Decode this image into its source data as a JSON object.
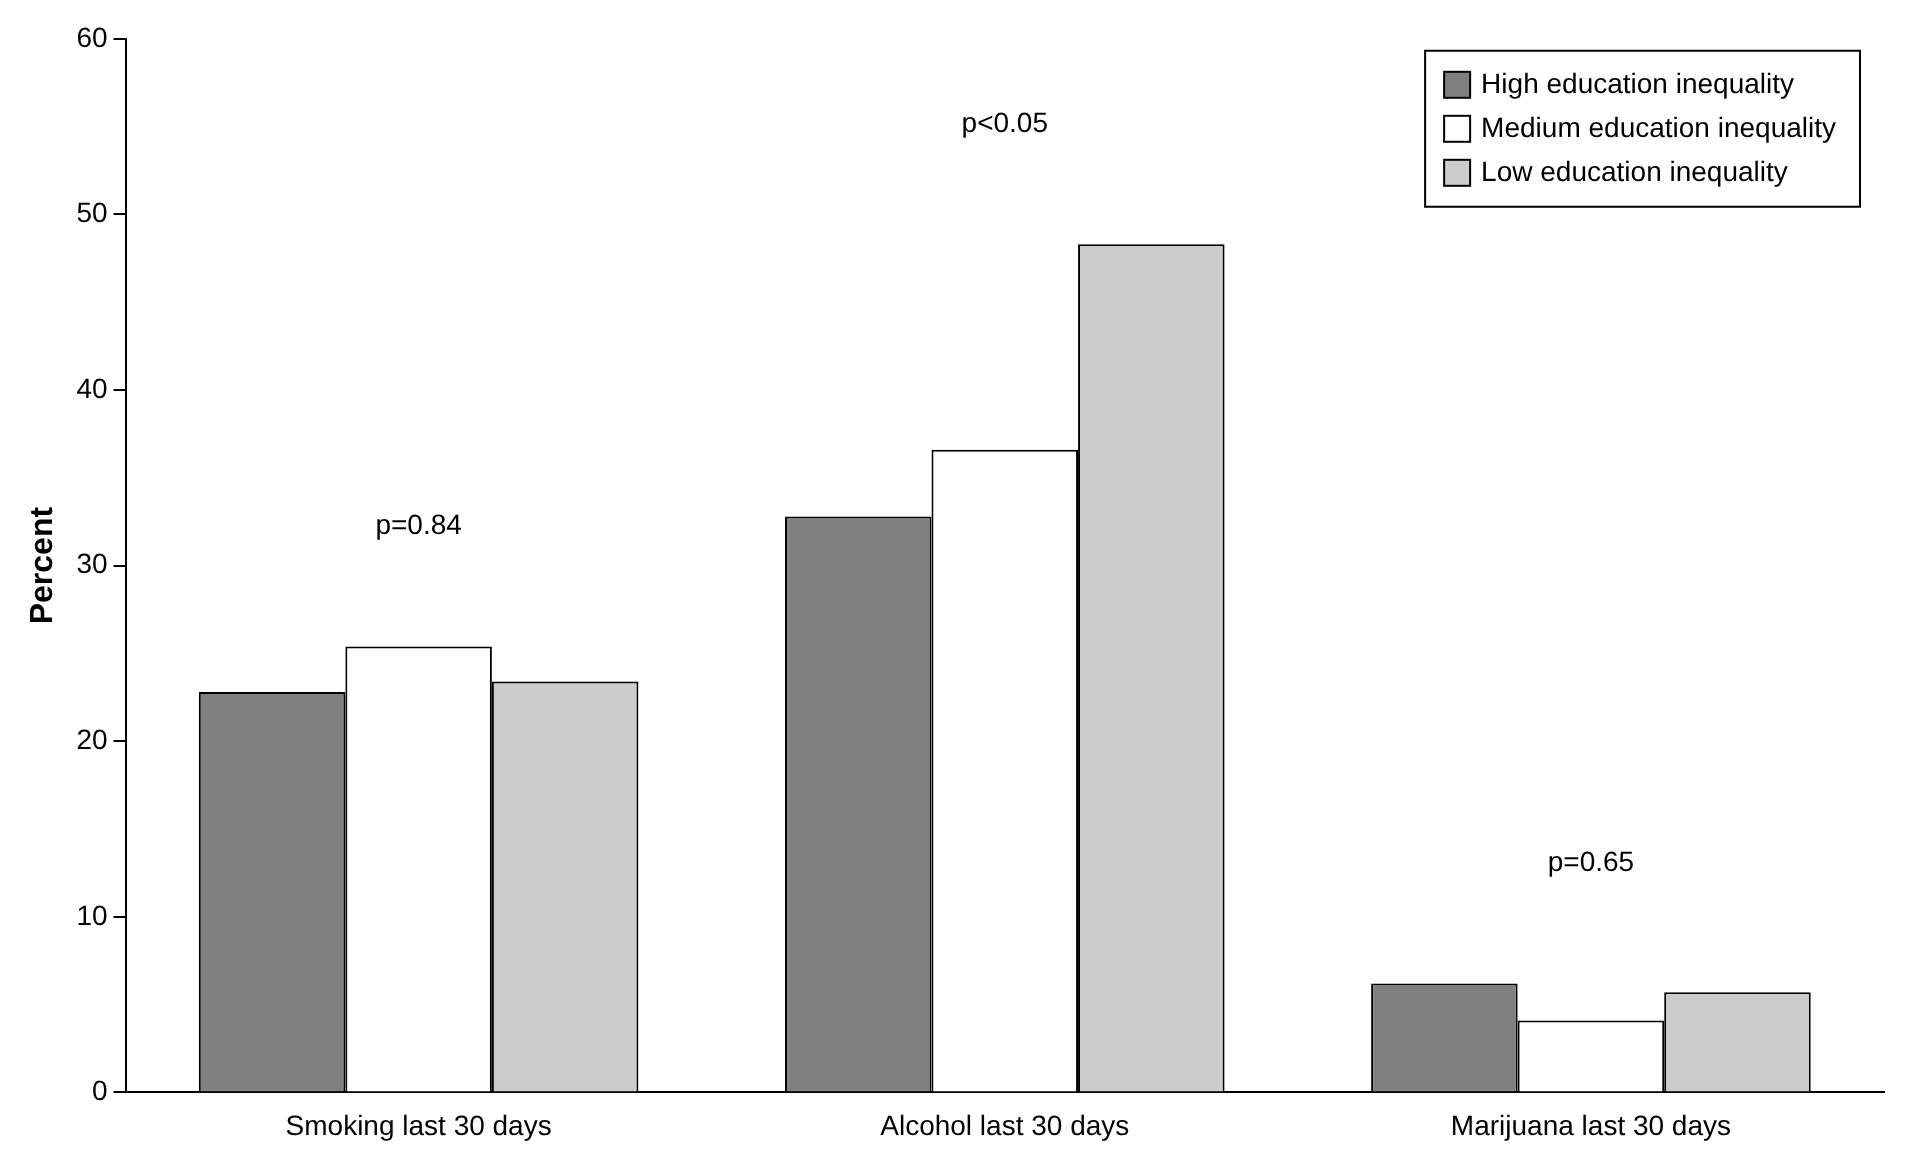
{
  "chart_data": {
    "type": "bar",
    "ylabel": "Percent",
    "categories": [
      "Smoking last 30 days",
      "Alcohol last 30 days",
      "Marijuana last 30 days"
    ],
    "series": [
      {
        "name": "High education inequality",
        "color": "#808080",
        "values": [
          22.8,
          32.8,
          6.2
        ]
      },
      {
        "name": "Medium education inequality",
        "color": "#ffffff",
        "values": [
          25.4,
          36.6,
          4.1
        ]
      },
      {
        "name": "Low education inequality",
        "color": "#cccccc",
        "values": [
          23.4,
          48.3,
          5.7
        ]
      }
    ],
    "ylim": [
      0,
      60
    ],
    "yticks": [
      0,
      10,
      20,
      30,
      40,
      50,
      60
    ],
    "grid": false,
    "legend": "top right",
    "annotations": [
      "p=0.84",
      "p<0.05",
      "p=0.65"
    ]
  }
}
